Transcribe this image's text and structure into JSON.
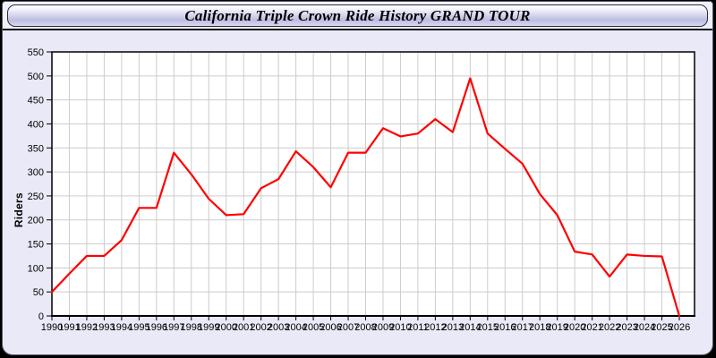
{
  "header": {
    "title": "California Triple Crown Ride History GRAND TOUR"
  },
  "colors": {
    "outer_bg": "#000000",
    "page_bg": "#e9e9f7",
    "plot_bg": "#ffffff",
    "grid": "#cccccc",
    "axis": "#000000",
    "tick_label": "#000000",
    "line": "#ff0000",
    "header_gradient_top": "#ffffff",
    "header_gradient_mid": "#bdbde0",
    "header_gradient_bottom": "#d8d8f2"
  },
  "chart_data": {
    "type": "line",
    "title": "California Triple Crown Ride History GRAND TOUR",
    "x": [
      1990,
      1991,
      1992,
      1993,
      1994,
      1995,
      1996,
      1997,
      1998,
      1999,
      2000,
      2001,
      2002,
      2003,
      2004,
      2005,
      2006,
      2007,
      2008,
      2009,
      2010,
      2011,
      2012,
      2013,
      2014,
      2015,
      2016,
      2017,
      2018,
      2019,
      2020,
      2021,
      2022,
      2023,
      2024,
      2025,
      2026
    ],
    "series": [
      {
        "name": "Riders",
        "values": [
          50,
          88,
          125,
          125,
          158,
          225,
          225,
          340,
          295,
          244,
          210,
          212,
          266,
          285,
          343,
          310,
          268,
          340,
          340,
          391,
          374,
          380,
          410,
          383,
          495,
          380,
          348,
          317,
          254,
          210,
          134,
          128,
          82,
          128,
          125,
          124,
          0
        ]
      }
    ],
    "xlabel": "",
    "ylabel": "Riders",
    "ylim": [
      0,
      550
    ],
    "ytick_step": 50,
    "grid": true,
    "legend": false,
    "markers": false
  }
}
